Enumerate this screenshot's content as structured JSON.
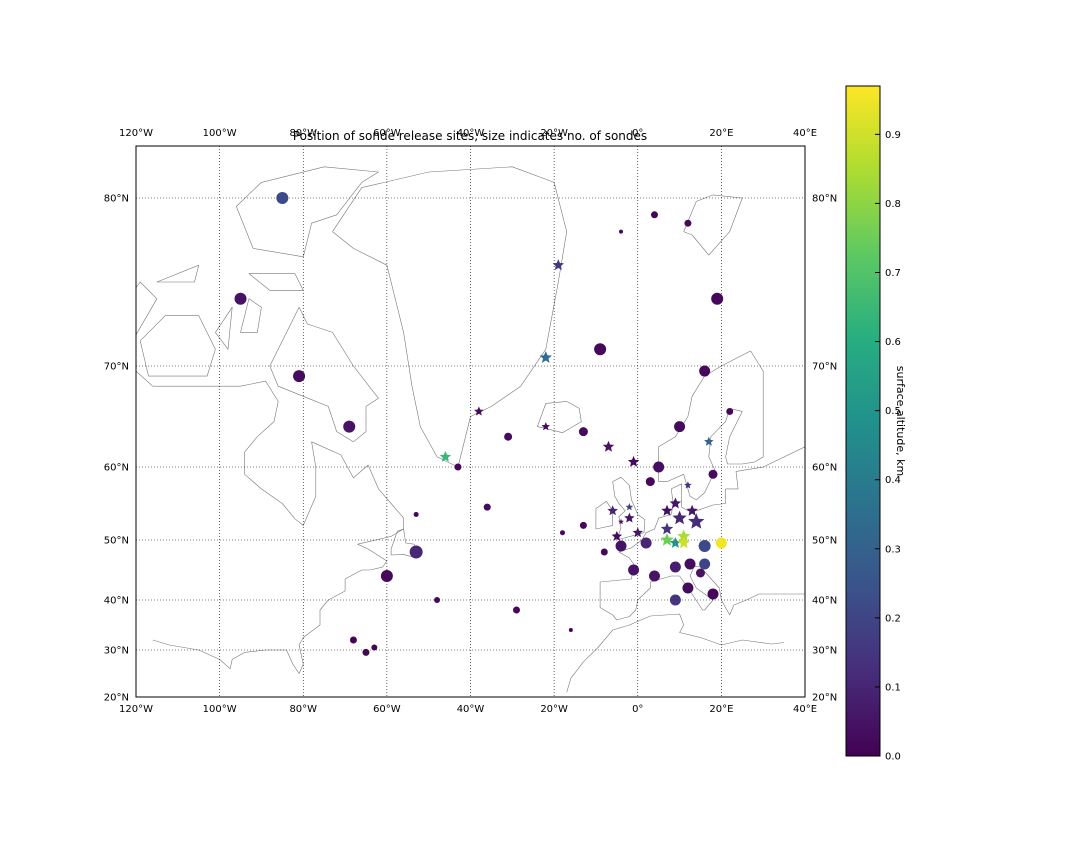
{
  "chart_data": {
    "type": "scatter",
    "title": "Position of sonde release sites, size indicates no. of sondes",
    "lon_range": [
      -120,
      40
    ],
    "lat_range": [
      20,
      85
    ],
    "lon_ticks": [
      {
        "v": -120,
        "label": "120°W"
      },
      {
        "v": -100,
        "label": "100°W"
      },
      {
        "v": -80,
        "label": "80°W"
      },
      {
        "v": -60,
        "label": "60°W"
      },
      {
        "v": -40,
        "label": "40°W"
      },
      {
        "v": -20,
        "label": "20°W"
      },
      {
        "v": 0,
        "label": "0°"
      },
      {
        "v": 20,
        "label": "20°E"
      },
      {
        "v": 40,
        "label": "40°E"
      }
    ],
    "lat_ticks": [
      {
        "v": 20,
        "label": "20°N"
      },
      {
        "v": 30,
        "label": "30°N"
      },
      {
        "v": 40,
        "label": "40°N"
      },
      {
        "v": 50,
        "label": "50°N"
      },
      {
        "v": 60,
        "label": "60°N"
      },
      {
        "v": 70,
        "label": "70°N"
      },
      {
        "v": 80,
        "label": "80°N"
      }
    ],
    "colorbar": {
      "label": "surface altitude, km",
      "min": 0.0,
      "max": 0.97,
      "ticks": [
        {
          "v": 0.0,
          "label": "0.0"
        },
        {
          "v": 0.1,
          "label": "0.1"
        },
        {
          "v": 0.2,
          "label": "0.2"
        },
        {
          "v": 0.3,
          "label": "0.3"
        },
        {
          "v": 0.4,
          "label": "0.4"
        },
        {
          "v": 0.5,
          "label": "0.5"
        },
        {
          "v": 0.6,
          "label": "0.6"
        },
        {
          "v": 0.7,
          "label": "0.7"
        },
        {
          "v": 0.8,
          "label": "0.8"
        },
        {
          "v": 0.9,
          "label": "0.9"
        }
      ]
    },
    "points": [
      {
        "lon": -85,
        "lat": 80,
        "alt": 0.22,
        "size": 12,
        "marker": "circle"
      },
      {
        "lon": -95,
        "lat": 74,
        "alt": 0.05,
        "size": 12,
        "marker": "circle"
      },
      {
        "lon": -81,
        "lat": 69,
        "alt": 0.03,
        "size": 12,
        "marker": "circle"
      },
      {
        "lon": -69,
        "lat": 64,
        "alt": 0.05,
        "size": 12,
        "marker": "circle"
      },
      {
        "lon": -9,
        "lat": 71,
        "alt": 0.02,
        "size": 12,
        "marker": "circle"
      },
      {
        "lon": 4,
        "lat": 79,
        "alt": 0.01,
        "size": 7,
        "marker": "circle"
      },
      {
        "lon": 12,
        "lat": 78.5,
        "alt": 0.02,
        "size": 7,
        "marker": "circle"
      },
      {
        "lon": -4,
        "lat": 78,
        "alt": 0.02,
        "size": 4,
        "marker": "circle"
      },
      {
        "lon": 19,
        "lat": 74,
        "alt": 0.02,
        "size": 12,
        "marker": "circle"
      },
      {
        "lon": 16,
        "lat": 69.5,
        "alt": 0.02,
        "size": 11,
        "marker": "circle"
      },
      {
        "lon": 22,
        "lat": 65.5,
        "alt": 0.02,
        "size": 7,
        "marker": "circle"
      },
      {
        "lon": 10,
        "lat": 64,
        "alt": 0.03,
        "size": 11,
        "marker": "circle"
      },
      {
        "lon": -13,
        "lat": 63.5,
        "alt": 0.03,
        "size": 9,
        "marker": "circle"
      },
      {
        "lon": -31,
        "lat": 63,
        "alt": 0.03,
        "size": 8,
        "marker": "circle"
      },
      {
        "lon": -43,
        "lat": 60,
        "alt": 0.02,
        "size": 7,
        "marker": "circle"
      },
      {
        "lon": 5,
        "lat": 60,
        "alt": 0.04,
        "size": 11,
        "marker": "circle"
      },
      {
        "lon": 18,
        "lat": 59,
        "alt": 0.03,
        "size": 9,
        "marker": "circle"
      },
      {
        "lon": 3,
        "lat": 58,
        "alt": 0.02,
        "size": 9,
        "marker": "circle"
      },
      {
        "lon": -36,
        "lat": 54.5,
        "alt": 0.02,
        "size": 7,
        "marker": "circle"
      },
      {
        "lon": -53,
        "lat": 53.5,
        "alt": 0.02,
        "size": 5,
        "marker": "circle"
      },
      {
        "lon": -18,
        "lat": 51,
        "alt": 0.02,
        "size": 5,
        "marker": "circle"
      },
      {
        "lon": -13,
        "lat": 52,
        "alt": 0.02,
        "size": 7,
        "marker": "circle"
      },
      {
        "lon": -53,
        "lat": 48,
        "alt": 0.1,
        "size": 13,
        "marker": "circle"
      },
      {
        "lon": -8,
        "lat": 48,
        "alt": 0.02,
        "size": 7,
        "marker": "circle"
      },
      {
        "lon": -4,
        "lat": 49,
        "alt": 0.05,
        "size": 11,
        "marker": "circle"
      },
      {
        "lon": 2,
        "lat": 49.5,
        "alt": 0.1,
        "size": 11,
        "marker": "circle"
      },
      {
        "lon": 16,
        "lat": 49,
        "alt": 0.22,
        "size": 12,
        "marker": "circle"
      },
      {
        "lon": 20,
        "lat": 49.5,
        "alt": 0.95,
        "size": 11,
        "marker": "circle"
      },
      {
        "lon": -60,
        "lat": 44,
        "alt": 0.02,
        "size": 12,
        "marker": "circle"
      },
      {
        "lon": -1,
        "lat": 45,
        "alt": 0.05,
        "size": 11,
        "marker": "circle"
      },
      {
        "lon": 4,
        "lat": 44,
        "alt": 0.05,
        "size": 11,
        "marker": "circle"
      },
      {
        "lon": 9,
        "lat": 45.5,
        "alt": 0.08,
        "size": 11,
        "marker": "circle"
      },
      {
        "lon": 12.5,
        "lat": 46,
        "alt": 0.04,
        "size": 11,
        "marker": "circle"
      },
      {
        "lon": 16,
        "lat": 46,
        "alt": 0.2,
        "size": 11,
        "marker": "circle"
      },
      {
        "lon": 15,
        "lat": 44.5,
        "alt": 0.05,
        "size": 9,
        "marker": "circle"
      },
      {
        "lon": 12,
        "lat": 42,
        "alt": 0.03,
        "size": 11,
        "marker": "circle"
      },
      {
        "lon": 9,
        "lat": 40,
        "alt": 0.15,
        "size": 11,
        "marker": "circle"
      },
      {
        "lon": 18,
        "lat": 41,
        "alt": 0.02,
        "size": 11,
        "marker": "circle"
      },
      {
        "lon": -48,
        "lat": 40,
        "alt": 0.02,
        "size": 6,
        "marker": "circle"
      },
      {
        "lon": -29,
        "lat": 38,
        "alt": 0.02,
        "size": 7,
        "marker": "circle"
      },
      {
        "lon": -68,
        "lat": 32,
        "alt": 0.01,
        "size": 7,
        "marker": "circle"
      },
      {
        "lon": -63,
        "lat": 30.5,
        "alt": 0.01,
        "size": 6,
        "marker": "circle"
      },
      {
        "lon": -65,
        "lat": 29.5,
        "alt": 0.01,
        "size": 7,
        "marker": "circle"
      },
      {
        "lon": -16,
        "lat": 34,
        "alt": 0.01,
        "size": 4,
        "marker": "circle"
      },
      {
        "lon": -19,
        "lat": 76,
        "alt": 0.15,
        "size": 12,
        "marker": "star"
      },
      {
        "lon": -22,
        "lat": 70.5,
        "alt": 0.35,
        "size": 13,
        "marker": "star"
      },
      {
        "lon": -38,
        "lat": 65.5,
        "alt": 0.03,
        "size": 10,
        "marker": "star"
      },
      {
        "lon": -22,
        "lat": 64,
        "alt": 0.03,
        "size": 9,
        "marker": "star"
      },
      {
        "lon": -46,
        "lat": 61,
        "alt": 0.65,
        "size": 12,
        "marker": "star"
      },
      {
        "lon": -7,
        "lat": 62,
        "alt": 0.05,
        "size": 12,
        "marker": "star"
      },
      {
        "lon": -1,
        "lat": 60.5,
        "alt": 0.02,
        "size": 12,
        "marker": "star"
      },
      {
        "lon": 17,
        "lat": 62.5,
        "alt": 0.3,
        "size": 10,
        "marker": "star"
      },
      {
        "lon": 12,
        "lat": 57.5,
        "alt": 0.15,
        "size": 8,
        "marker": "star"
      },
      {
        "lon": -6,
        "lat": 54,
        "alt": 0.1,
        "size": 11,
        "marker": "star"
      },
      {
        "lon": -4,
        "lat": 52.5,
        "alt": 0.05,
        "size": 6,
        "marker": "star"
      },
      {
        "lon": -2,
        "lat": 54.5,
        "alt": 0.2,
        "size": 8,
        "marker": "star"
      },
      {
        "lon": -2,
        "lat": 53,
        "alt": 0.05,
        "size": 11,
        "marker": "star"
      },
      {
        "lon": 7,
        "lat": 54,
        "alt": 0.04,
        "size": 12,
        "marker": "star"
      },
      {
        "lon": 9,
        "lat": 55,
        "alt": 0.05,
        "size": 12,
        "marker": "star"
      },
      {
        "lon": 10,
        "lat": 53,
        "alt": 0.1,
        "size": 15,
        "marker": "star"
      },
      {
        "lon": 13,
        "lat": 54,
        "alt": 0.05,
        "size": 12,
        "marker": "star"
      },
      {
        "lon": 14,
        "lat": 52.5,
        "alt": 0.12,
        "size": 17,
        "marker": "star"
      },
      {
        "lon": 7,
        "lat": 51.5,
        "alt": 0.15,
        "size": 13,
        "marker": "star"
      },
      {
        "lon": 0,
        "lat": 51,
        "alt": 0.05,
        "size": 11,
        "marker": "star"
      },
      {
        "lon": -5,
        "lat": 50.5,
        "alt": 0.03,
        "size": 11,
        "marker": "star"
      },
      {
        "lon": 7,
        "lat": 50,
        "alt": 0.75,
        "size": 14,
        "marker": "star"
      },
      {
        "lon": 9,
        "lat": 49.5,
        "alt": 0.5,
        "size": 12,
        "marker": "star"
      },
      {
        "lon": 11,
        "lat": 50.5,
        "alt": 0.85,
        "size": 14,
        "marker": "star"
      },
      {
        "lon": 11,
        "lat": 49.5,
        "alt": 0.9,
        "size": 13,
        "marker": "star"
      }
    ]
  }
}
